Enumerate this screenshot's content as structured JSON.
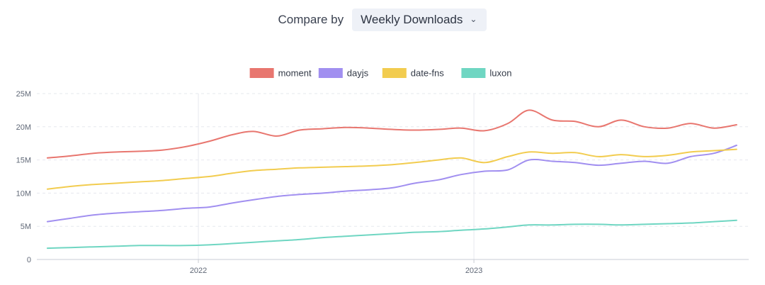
{
  "header": {
    "compare_label": "Compare by",
    "select_value": "Weekly Downloads",
    "chevron_icon": "chevron-down-icon"
  },
  "chart_data": {
    "type": "line",
    "title": "",
    "xlabel": "",
    "ylabel": "",
    "ylim": [
      0,
      25000000
    ],
    "yticks": [
      0,
      5000000,
      10000000,
      15000000,
      20000000,
      25000000
    ],
    "ytick_labels": [
      "0",
      "5M",
      "10M",
      "15M",
      "20M",
      "25M"
    ],
    "xlim": [
      "2021-06-01",
      "2023-12-31"
    ],
    "xticks": [
      "2022-01-01",
      "2023-01-01"
    ],
    "xtick_labels": [
      "2022",
      "2023"
    ],
    "grid": true,
    "legend": "top-center",
    "x": [
      "2021-06",
      "2021-07",
      "2021-08",
      "2021-09",
      "2021-10",
      "2021-11",
      "2021-12",
      "2022-01",
      "2022-02",
      "2022-03",
      "2022-04",
      "2022-05",
      "2022-06",
      "2022-07",
      "2022-08",
      "2022-09",
      "2022-10",
      "2022-11",
      "2022-12",
      "2023-01",
      "2023-02",
      "2023-03",
      "2023-04",
      "2023-05",
      "2023-06",
      "2023-07",
      "2023-08",
      "2023-09",
      "2023-10",
      "2023-11",
      "2023-12"
    ],
    "series": [
      {
        "name": "moment",
        "color": "#e8766f",
        "values": [
          15300000,
          15600000,
          16000000,
          16200000,
          16300000,
          16500000,
          17000000,
          17800000,
          18800000,
          19300000,
          18600000,
          19500000,
          19700000,
          19900000,
          19800000,
          19600000,
          19500000,
          19600000,
          19800000,
          19400000,
          20500000,
          22500000,
          21000000,
          20800000,
          20000000,
          21000000,
          20000000,
          19800000,
          20500000,
          19800000,
          20300000
        ]
      },
      {
        "name": "dayjs",
        "color": "#a18ff0",
        "values": [
          5700000,
          6200000,
          6700000,
          7000000,
          7200000,
          7400000,
          7700000,
          7900000,
          8500000,
          9000000,
          9500000,
          9800000,
          10000000,
          10300000,
          10500000,
          10800000,
          11500000,
          12000000,
          12800000,
          13300000,
          13500000,
          15000000,
          14800000,
          14600000,
          14200000,
          14500000,
          14800000,
          14500000,
          15500000,
          16000000,
          17200000
        ]
      },
      {
        "name": "date-fns",
        "color": "#f2cc4f",
        "values": [
          10600000,
          11000000,
          11300000,
          11500000,
          11700000,
          11900000,
          12200000,
          12500000,
          13000000,
          13400000,
          13600000,
          13800000,
          13900000,
          14000000,
          14100000,
          14300000,
          14600000,
          15000000,
          15300000,
          14600000,
          15500000,
          16200000,
          16000000,
          16100000,
          15500000,
          15800000,
          15500000,
          15700000,
          16200000,
          16400000,
          16600000
        ]
      },
      {
        "name": "luxon",
        "color": "#6fd6c2",
        "values": [
          1700000,
          1800000,
          1900000,
          2000000,
          2100000,
          2100000,
          2100000,
          2200000,
          2400000,
          2600000,
          2800000,
          3000000,
          3300000,
          3500000,
          3700000,
          3900000,
          4100000,
          4200000,
          4400000,
          4600000,
          4900000,
          5200000,
          5200000,
          5300000,
          5300000,
          5200000,
          5300000,
          5400000,
          5500000,
          5700000,
          5900000
        ]
      }
    ]
  }
}
